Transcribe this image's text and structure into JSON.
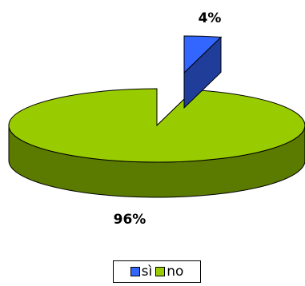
{
  "chart_data": {
    "type": "pie",
    "style": "3d-exploded",
    "title": "",
    "categories": [
      "sì",
      "no"
    ],
    "values": [
      4,
      96
    ],
    "data_labels": [
      "4%",
      "96%"
    ],
    "colors": {
      "sì": {
        "top": "#3366ff",
        "side": "#1f3d99"
      },
      "no": {
        "top": "#99cc00",
        "side": "#5a7a00"
      }
    },
    "exploded": [
      "sì"
    ],
    "legend": {
      "position": "bottom",
      "entries": [
        {
          "label": "sì",
          "color": "#3366ff"
        },
        {
          "label": "no",
          "color": "#99cc00"
        }
      ]
    }
  }
}
